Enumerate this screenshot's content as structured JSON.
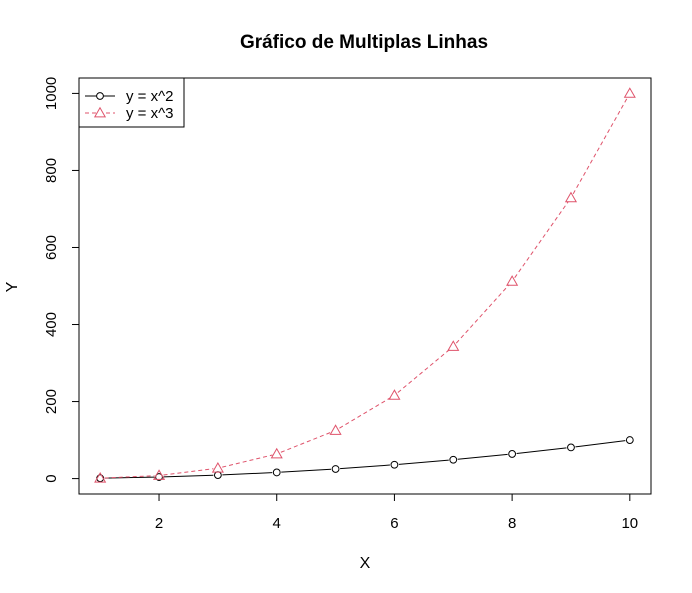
{
  "chart_data": {
    "type": "line",
    "title": "Gráfico de Multiplas Linhas",
    "xlabel": "X",
    "ylabel": "Y",
    "xlim": [
      0.64,
      10.36
    ],
    "ylim": [
      -40,
      1040
    ],
    "xticks": [
      2,
      4,
      6,
      8,
      10
    ],
    "yticks": [
      0,
      200,
      400,
      600,
      800,
      1000
    ],
    "x": [
      1,
      2,
      3,
      4,
      5,
      6,
      7,
      8,
      9,
      10
    ],
    "series": [
      {
        "name": "y = x^2",
        "values": [
          1,
          4,
          9,
          16,
          25,
          36,
          49,
          64,
          81,
          100
        ],
        "color": "#000000",
        "line_style": "solid",
        "marker": "circle"
      },
      {
        "name": "y = x^3",
        "values": [
          1,
          8,
          27,
          64,
          125,
          216,
          343,
          512,
          729,
          1000
        ],
        "color": "#DF536B",
        "line_style": "dashed",
        "marker": "triangle"
      }
    ],
    "legend_position": "top-left",
    "grid": false
  }
}
